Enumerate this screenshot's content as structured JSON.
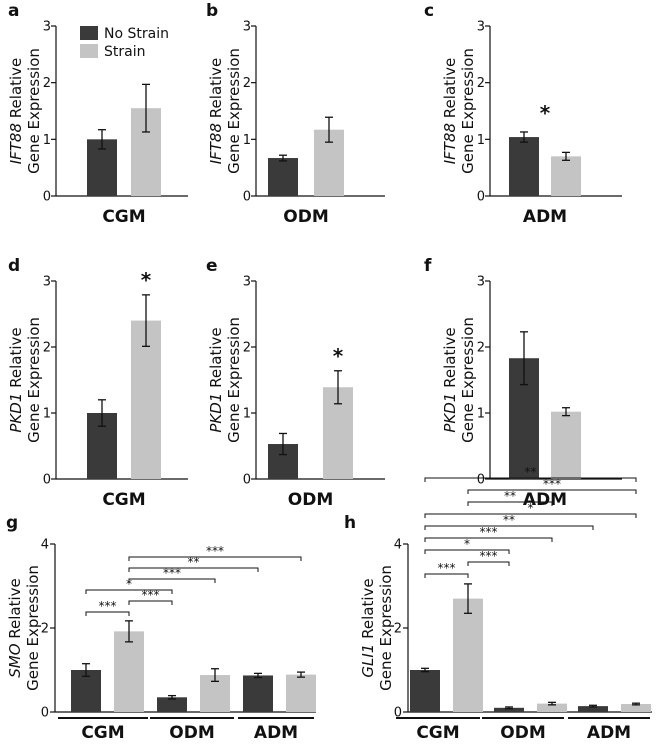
{
  "colors": {
    "no_strain": "#3a3a3a",
    "strain": "#c4c4c4",
    "ink": "#111111"
  },
  "legend": {
    "entries": [
      "No Strain",
      "Strain"
    ]
  },
  "chart_data": [
    {
      "id": "a",
      "type": "bar",
      "letter": "a",
      "gene": "IFT88",
      "ylabel_suffix": " Relative",
      "ylabel_line2": "Gene Expression",
      "ylim": [
        0,
        3
      ],
      "yticks": [
        "0",
        "1",
        "2",
        "3"
      ],
      "categories": [
        "CGM"
      ],
      "series": [
        {
          "name": "No Strain",
          "values": [
            1.0
          ],
          "errors": [
            0.17
          ]
        },
        {
          "name": "Strain",
          "values": [
            1.55
          ],
          "errors": [
            0.42
          ]
        }
      ],
      "stars": []
    },
    {
      "id": "b",
      "type": "bar",
      "letter": "b",
      "gene": "IFT88",
      "ylabel_suffix": " Relative",
      "ylabel_line2": "Gene Expression",
      "ylim": [
        0,
        3
      ],
      "yticks": [
        "0",
        "1",
        "2",
        "3"
      ],
      "categories": [
        "ODM"
      ],
      "series": [
        {
          "name": "No Strain",
          "values": [
            0.67
          ],
          "errors": [
            0.05
          ]
        },
        {
          "name": "Strain",
          "values": [
            1.17
          ],
          "errors": [
            0.22
          ]
        }
      ],
      "stars": []
    },
    {
      "id": "c",
      "type": "bar",
      "letter": "c",
      "gene": "IFT88",
      "ylabel_suffix": " Relative",
      "ylabel_line2": "Gene Expression",
      "ylim": [
        0,
        3
      ],
      "yticks": [
        "0",
        "1",
        "2",
        "3"
      ],
      "categories": [
        "ADM"
      ],
      "series": [
        {
          "name": "No Strain",
          "values": [
            1.04
          ],
          "errors": [
            0.09
          ]
        },
        {
          "name": "Strain",
          "values": [
            0.7
          ],
          "errors": [
            0.07
          ]
        }
      ],
      "stars": [
        "*"
      ]
    },
    {
      "id": "d",
      "type": "bar",
      "letter": "d",
      "gene": "PKD1",
      "ylabel_suffix": " Relative",
      "ylabel_line2": "Gene Expression",
      "ylim": [
        0,
        3
      ],
      "yticks": [
        "0",
        "1",
        "2",
        "3"
      ],
      "categories": [
        "CGM"
      ],
      "series": [
        {
          "name": "No Strain",
          "values": [
            1.0
          ],
          "errors": [
            0.2
          ]
        },
        {
          "name": "Strain",
          "values": [
            2.4
          ],
          "errors": [
            0.39
          ]
        }
      ],
      "stars": [
        "*"
      ]
    },
    {
      "id": "e",
      "type": "bar",
      "letter": "e",
      "gene": "PKD1",
      "ylabel_suffix": " Relative",
      "ylabel_line2": "Gene Expression",
      "ylim": [
        0,
        3
      ],
      "yticks": [
        "0",
        "1",
        "2",
        "3"
      ],
      "categories": [
        "ODM"
      ],
      "series": [
        {
          "name": "No Strain",
          "values": [
            0.53
          ],
          "errors": [
            0.16
          ]
        },
        {
          "name": "Strain",
          "values": [
            1.39
          ],
          "errors": [
            0.25
          ]
        }
      ],
      "stars": [
        "*"
      ]
    },
    {
      "id": "f",
      "type": "bar",
      "letter": "f",
      "gene": "PKD1",
      "ylabel_suffix": " Relative",
      "ylabel_line2": "Gene Expression",
      "ylim": [
        0,
        3
      ],
      "yticks": [
        "0",
        "1",
        "2",
        "3"
      ],
      "categories": [
        "ADM"
      ],
      "series": [
        {
          "name": "No Strain",
          "values": [
            1.83
          ],
          "errors": [
            0.4
          ]
        },
        {
          "name": "Strain",
          "values": [
            1.02
          ],
          "errors": [
            0.06
          ]
        }
      ],
      "stars": []
    },
    {
      "id": "g",
      "type": "bar",
      "letter": "g",
      "gene": "SMO",
      "ylabel_suffix": " Relative",
      "ylabel_line2": "Gene Expression",
      "ylim": [
        0,
        4
      ],
      "yticks": [
        "0",
        "2",
        "4"
      ],
      "categories": [
        "CGM",
        "ODM",
        "ADM"
      ],
      "series": [
        {
          "name": "No Strain",
          "values": [
            1.0,
            0.35,
            0.87
          ],
          "errors": [
            0.15,
            0.04,
            0.05
          ]
        },
        {
          "name": "Strain",
          "values": [
            1.92,
            0.88,
            0.89
          ],
          "errors": [
            0.25,
            0.15,
            0.06
          ]
        }
      ],
      "comparisons": [
        {
          "from": 0,
          "to": 1,
          "label": "***"
        },
        {
          "from": 1,
          "to": 2,
          "label": "***"
        },
        {
          "from": 0,
          "to": 2,
          "label": "*"
        },
        {
          "from": 1,
          "to": 3,
          "label": "***"
        },
        {
          "from": 1,
          "to": 4,
          "label": "**"
        },
        {
          "from": 1,
          "to": 5,
          "label": "***"
        }
      ]
    },
    {
      "id": "h",
      "type": "bar",
      "letter": "h",
      "gene": "GLI1",
      "ylabel_suffix": " Relative",
      "ylabel_line2": "Gene Expression",
      "ylim": [
        0,
        4
      ],
      "yticks": [
        "0",
        "2",
        "4"
      ],
      "categories": [
        "CGM",
        "ODM",
        "ADM"
      ],
      "series": [
        {
          "name": "No Strain",
          "values": [
            1.0,
            0.1,
            0.14
          ],
          "errors": [
            0.04,
            0.02,
            0.02
          ]
        },
        {
          "name": "Strain",
          "values": [
            2.7,
            0.2,
            0.19
          ],
          "errors": [
            0.35,
            0.03,
            0.02
          ]
        }
      ],
      "comparisons": [
        {
          "from": 0,
          "to": 1,
          "label": "***"
        },
        {
          "from": 1,
          "to": 2,
          "label": "***"
        },
        {
          "from": 0,
          "to": 2,
          "label": "*"
        },
        {
          "from": 0,
          "to": 3,
          "label": "***"
        },
        {
          "from": 0,
          "to": 4,
          "label": "**"
        },
        {
          "from": 0,
          "to": 5,
          "label": "*"
        },
        {
          "from": 1,
          "to": 3,
          "label": "**"
        },
        {
          "from": 1,
          "to": 5,
          "label": "***"
        },
        {
          "from": 0,
          "to": 6,
          "label": "**"
        }
      ]
    }
  ]
}
